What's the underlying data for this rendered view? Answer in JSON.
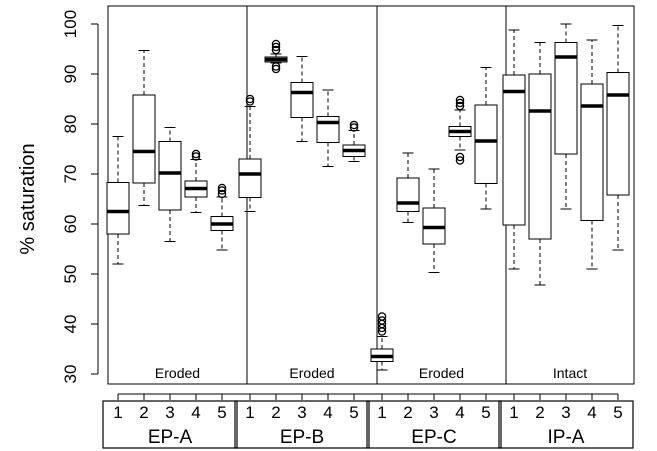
{
  "chart_data": {
    "type": "box",
    "ylabel": "% saturation",
    "xlabel": "",
    "title": "",
    "ylim": [
      30,
      100
    ],
    "yticks": [
      30,
      40,
      50,
      60,
      70,
      80,
      90,
      100
    ],
    "grid": false,
    "legend": "none",
    "groups": [
      {
        "name": "EP-A",
        "panel_label": "Eroded",
        "boxes": [
          {
            "label": "1",
            "whisker_low": 52,
            "q1": 58,
            "median": 62.5,
            "q3": 68.3,
            "whisker_high": 77.5,
            "outliers": []
          },
          {
            "label": "2",
            "whisker_low": 63.7,
            "q1": 68.2,
            "median": 74.5,
            "q3": 85.8,
            "whisker_high": 94.7,
            "outliers": []
          },
          {
            "label": "3",
            "whisker_low": 56.5,
            "q1": 62.8,
            "median": 70.2,
            "q3": 76.5,
            "whisker_high": 79.3,
            "outliers": []
          },
          {
            "label": "4",
            "whisker_low": 62.3,
            "q1": 65.4,
            "median": 67.1,
            "q3": 68.6,
            "whisker_high": 72.9,
            "outliers": [
              73.5,
              74
            ]
          },
          {
            "label": "5",
            "whisker_low": 54.8,
            "q1": 58.7,
            "median": 60,
            "q3": 61.5,
            "whisker_high": 65.4,
            "outliers": [
              66,
              66.7,
              67.2
            ]
          }
        ]
      },
      {
        "name": "EP-B",
        "panel_label": "Eroded",
        "boxes": [
          {
            "label": "1",
            "whisker_low": 62.5,
            "q1": 65.3,
            "median": 70,
            "q3": 73,
            "whisker_high": 83.5,
            "outliers": [
              84.5,
              85
            ]
          },
          {
            "label": "2",
            "whisker_low": 92.2,
            "q1": 92.4,
            "median": 92.9,
            "q3": 93.4,
            "whisker_high": 94,
            "outliers": [
              91,
              91.5,
              94.8,
              95.4,
              96
            ]
          },
          {
            "label": "3",
            "whisker_low": 76.5,
            "q1": 81.3,
            "median": 86.3,
            "q3": 88.3,
            "whisker_high": 93.5,
            "outliers": []
          },
          {
            "label": "4",
            "whisker_low": 71.5,
            "q1": 76.3,
            "median": 80.3,
            "q3": 81.5,
            "whisker_high": 86.8,
            "outliers": []
          },
          {
            "label": "5",
            "whisker_low": 72.5,
            "q1": 73.5,
            "median": 74.7,
            "q3": 75.8,
            "whisker_high": 78.7,
            "outliers": [
              79.3,
              79.8
            ]
          }
        ]
      },
      {
        "name": "EP-C",
        "panel_label": "Eroded",
        "boxes": [
          {
            "label": "1",
            "whisker_low": 30.8,
            "q1": 32.5,
            "median": 33.5,
            "q3": 35,
            "whisker_high": 37.5,
            "outliers": [
              38.5,
              39.2,
              40,
              40.7,
              41.5
            ]
          },
          {
            "label": "2",
            "whisker_low": 60.3,
            "q1": 62.5,
            "median": 64.2,
            "q3": 69.2,
            "whisker_high": 74.2,
            "outliers": []
          },
          {
            "label": "3",
            "whisker_low": 50.3,
            "q1": 56,
            "median": 59.3,
            "q3": 63.2,
            "whisker_high": 71,
            "outliers": []
          },
          {
            "label": "4",
            "whisker_low": 74.8,
            "q1": 77.5,
            "median": 78.5,
            "q3": 79.5,
            "whisker_high": 82.8,
            "outliers": [
              72.7,
              73.4,
              83.6,
              84.2,
              84.8
            ]
          },
          {
            "label": "5",
            "whisker_low": 63,
            "q1": 68.1,
            "median": 76.6,
            "q3": 83.8,
            "whisker_high": 91.3,
            "outliers": []
          }
        ]
      },
      {
        "name": "IP-A",
        "panel_label": "Intact",
        "boxes": [
          {
            "label": "1",
            "whisker_low": 51,
            "q1": 59.8,
            "median": 86.5,
            "q3": 89.8,
            "whisker_high": 98.8,
            "outliers": []
          },
          {
            "label": "2",
            "whisker_low": 47.8,
            "q1": 57,
            "median": 82.6,
            "q3": 90,
            "whisker_high": 96.3,
            "outliers": []
          },
          {
            "label": "3",
            "whisker_low": 63,
            "q1": 74,
            "median": 93.4,
            "q3": 96.3,
            "whisker_high": 100,
            "outliers": []
          },
          {
            "label": "4",
            "whisker_low": 51,
            "q1": 60.7,
            "median": 83.6,
            "q3": 88,
            "whisker_high": 96.8,
            "outliers": []
          },
          {
            "label": "5",
            "whisker_low": 54.8,
            "q1": 65.8,
            "median": 85.8,
            "q3": 90.3,
            "whisker_high": 99.7,
            "outliers": []
          }
        ]
      }
    ]
  }
}
